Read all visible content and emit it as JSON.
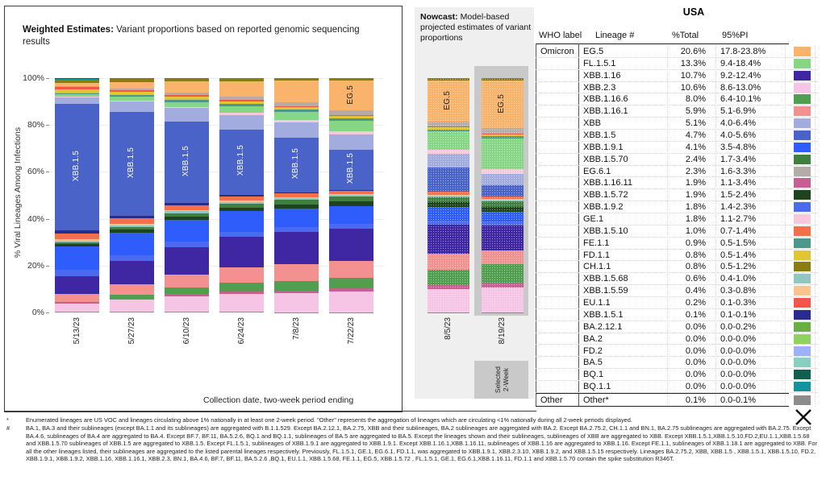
{
  "weighted_panel": {
    "title_bold": "Weighted Estimates:",
    "title_rest": " Variant proportions based on reported genomic sequencing results",
    "y_axis_label": "% Viral Lineages Among Infections",
    "x_axis_label": "Collection date, two-week period ending"
  },
  "nowcast_panel": {
    "title_bold": "Nowcast:",
    "title_rest": " Model-based projected estimates of variant proportions",
    "selected_line1": "Selected",
    "selected_line2": "2-Week"
  },
  "chart_data": {
    "type": "bar",
    "subtype": "stacked-percent",
    "title": "Weighted Estimates: Variant proportions based on reported genomic sequencing results",
    "xlabel": "Collection date, two-week period ending",
    "ylabel": "% Viral Lineages Among Infections",
    "ylim": [
      0,
      100
    ],
    "y_ticks": [
      "0%",
      "20%",
      "40%",
      "60%",
      "80%",
      "100%"
    ],
    "weighted_dates": [
      "5/13/23",
      "5/27/23",
      "6/10/23",
      "6/24/23",
      "7/8/23",
      "7/22/23"
    ],
    "nowcast_dates": [
      "8/5/23",
      "8/19/23"
    ],
    "categories": [
      "5/13/23",
      "5/27/23",
      "6/10/23",
      "6/24/23",
      "7/8/23",
      "7/22/23",
      "8/5/23",
      "8/19/23"
    ],
    "stack_order": "bottom-to-top",
    "series": [
      {
        "name": "Other",
        "color": "#8C8C8C",
        "dotted": false,
        "values": [
          0.3,
          0.3,
          0.2,
          0.2,
          0.1,
          0.1,
          0.1,
          0.1
        ]
      },
      {
        "name": "XBB.2.3",
        "color": "#F6C4E5",
        "dotted": true,
        "values": [
          3.5,
          5.0,
          6.5,
          7.5,
          8.0,
          8.5,
          9.5,
          10.6
        ]
      },
      {
        "name": "XBB.1.16.11",
        "color": "#C75F92",
        "dotted": false,
        "values": [
          0.3,
          0.5,
          0.8,
          1.0,
          1.2,
          1.5,
          1.7,
          1.9
        ]
      },
      {
        "name": "XBB.1.16.6",
        "color": "#509E50",
        "dotted": false,
        "values": [
          0.5,
          1.5,
          2.5,
          3.5,
          4.0,
          4.5,
          6.5,
          8.0
        ]
      },
      {
        "name": "XBB.1.16.1",
        "color": "#F39191",
        "dotted": false,
        "values": [
          3.5,
          4.5,
          5.5,
          6.5,
          7.0,
          7.0,
          6.5,
          5.9
        ]
      },
      {
        "name": "XBB.1.16",
        "color": "#3F27A3",
        "dotted": false,
        "values": [
          7.5,
          9.5,
          11.0,
          12.5,
          13.5,
          13.5,
          12.0,
          10.7
        ]
      },
      {
        "name": "XBB.1.9.2",
        "color": "#4A6AF0",
        "dotted": true,
        "values": [
          2.6,
          2.4,
          2.2,
          2.1,
          2.0,
          1.9,
          1.8,
          1.8
        ]
      },
      {
        "name": "XBB.1.9.1",
        "color": "#2E5DFC",
        "dotted": false,
        "values": [
          10.0,
          9.5,
          9.0,
          8.5,
          8.0,
          7.5,
          5.5,
          4.1
        ]
      },
      {
        "name": "XBB.1.5.72",
        "color": "#1F431F",
        "dotted": false,
        "values": [
          1.0,
          1.2,
          1.4,
          1.5,
          1.6,
          1.8,
          1.9,
          1.9
        ]
      },
      {
        "name": "XBB.1.5.70",
        "color": "#417F41",
        "dotted": false,
        "values": [
          0.8,
          1.0,
          1.3,
          1.6,
          1.9,
          2.1,
          2.3,
          2.4
        ]
      },
      {
        "name": "XBB.1.5.68",
        "color": "#8FC8C0",
        "dotted": true,
        "values": [
          0.8,
          0.8,
          0.7,
          0.7,
          0.7,
          0.6,
          0.6,
          0.6
        ]
      },
      {
        "name": "XBB.1.5.59",
        "color": "#FBC48E",
        "dotted": false,
        "values": [
          0.6,
          0.6,
          0.5,
          0.5,
          0.5,
          0.4,
          0.4,
          0.4
        ]
      },
      {
        "name": "XBB.1.5.10",
        "color": "#F2714C",
        "dotted": true,
        "values": [
          2.4,
          2.2,
          2.0,
          1.8,
          1.5,
          1.3,
          1.1,
          1.0
        ]
      },
      {
        "name": "XBB.1.5.1",
        "color": "#262D8D",
        "dotted": false,
        "values": [
          1.4,
          1.1,
          0.9,
          0.7,
          0.5,
          0.3,
          0.2,
          0.1
        ]
      },
      {
        "name": "XBB.1.5",
        "color": "#4A63C8",
        "dotted": false,
        "values": [
          54.0,
          43.0,
          33.0,
          27.0,
          23.0,
          17.0,
          10.0,
          4.7
        ]
      },
      {
        "name": "XBB",
        "color": "#A3ACDE",
        "dotted": false,
        "values": [
          3.0,
          4.5,
          5.5,
          6.0,
          6.3,
          6.3,
          5.7,
          5.1
        ]
      },
      {
        "name": "GE.1",
        "color": "#F8C8DF",
        "dotted": true,
        "values": [
          0.2,
          0.4,
          0.6,
          0.8,
          1.0,
          1.3,
          1.6,
          1.8
        ]
      },
      {
        "name": "FL.1.5.1",
        "color": "#86D686",
        "dotted": false,
        "values": [
          1.0,
          1.5,
          2.0,
          2.8,
          3.5,
          4.5,
          7.5,
          13.3
        ]
      },
      {
        "name": "FE.1.1",
        "color": "#4F968C",
        "dotted": true,
        "values": [
          0.5,
          0.6,
          0.7,
          0.8,
          0.9,
          1.0,
          0.9,
          0.9
        ]
      },
      {
        "name": "FD.2",
        "color": "#9DB1F8",
        "dotted": true,
        "values": [
          0.2,
          0.1,
          0.1,
          0.1,
          0.0,
          0.0,
          0.0,
          0.0
        ]
      },
      {
        "name": "FD.1.1",
        "color": "#E0C633",
        "dotted": false,
        "values": [
          1.4,
          1.3,
          1.2,
          1.1,
          1.0,
          0.9,
          0.8,
          0.8
        ]
      },
      {
        "name": "EU.1.1",
        "color": "#F25549",
        "dotted": false,
        "values": [
          1.0,
          0.9,
          0.8,
          0.6,
          0.5,
          0.4,
          0.3,
          0.2
        ]
      },
      {
        "name": "EG.6.1",
        "color": "#B5ABA9",
        "dotted": true,
        "values": [
          0.4,
          0.6,
          0.9,
          1.2,
          1.6,
          2.0,
          2.2,
          2.3
        ]
      },
      {
        "name": "EG.5",
        "color": "#F9B36A",
        "dotted": false,
        "values": [
          1.5,
          2.5,
          4.5,
          6.5,
          9.0,
          12.5,
          17.0,
          20.6
        ]
      },
      {
        "name": "CH.1.1",
        "color": "#897C12",
        "dotted": false,
        "values": [
          1.4,
          1.3,
          1.2,
          1.1,
          1.0,
          0.9,
          0.8,
          0.8
        ]
      },
      {
        "name": "BQ.1.1",
        "color": "#12939D",
        "dotted": false,
        "values": [
          0.4,
          0.3,
          0.2,
          0.1,
          0.1,
          0.0,
          0.0,
          0.0
        ]
      },
      {
        "name": "BQ.1",
        "color": "#11604F",
        "dotted": false,
        "values": [
          0.1,
          0.1,
          0.0,
          0.0,
          0.0,
          0.0,
          0.0,
          0.0
        ]
      },
      {
        "name": "BA.5",
        "color": "#87D0C0",
        "dotted": false,
        "values": [
          0,
          0,
          0,
          0,
          0,
          0,
          0,
          0
        ]
      },
      {
        "name": "BA.2.12.1",
        "color": "#68B044",
        "dotted": false,
        "values": [
          0,
          0,
          0,
          0,
          0,
          0,
          0,
          0
        ]
      },
      {
        "name": "BA.2",
        "color": "#8FD35F",
        "dotted": false,
        "values": [
          0,
          0,
          0,
          0,
          0,
          0,
          0,
          0
        ]
      }
    ],
    "bar_labels": [
      {
        "text": "XBB.1.5",
        "lineage": "XBB.1.5",
        "bars": [
          0,
          1,
          2,
          3,
          4,
          5
        ],
        "color": "#ffffff"
      },
      {
        "text": "EG.5",
        "lineage": "EG.5",
        "bars": [
          5,
          6,
          7
        ],
        "color": "#1a1a1a"
      }
    ]
  },
  "table": {
    "title": "USA",
    "headers": [
      "WHO label",
      "Lineage #",
      "%Total",
      "95%PI"
    ],
    "rows": [
      {
        "who": "Omicron",
        "lineage": "EG.5",
        "total": "20.6%",
        "pi": "17.8-23.8%",
        "color": "#F9B36A",
        "dotted": false
      },
      {
        "who": "",
        "lineage": "FL.1.5.1",
        "total": "13.3%",
        "pi": "9.4-18.4%",
        "color": "#86D686",
        "dotted": false
      },
      {
        "who": "",
        "lineage": "XBB.1.16",
        "total": "10.7%",
        "pi": "9.2-12.4%",
        "color": "#3F27A3",
        "dotted": false
      },
      {
        "who": "",
        "lineage": "XBB.2.3",
        "total": "10.6%",
        "pi": "8.6-13.0%",
        "color": "#F6C4E5",
        "dotted": true
      },
      {
        "who": "",
        "lineage": "XBB.1.16.6",
        "total": "8.0%",
        "pi": "6.4-10.1%",
        "color": "#509E50",
        "dotted": false
      },
      {
        "who": "",
        "lineage": "XBB.1.16.1",
        "total": "5.9%",
        "pi": "5.1-6.9%",
        "color": "#F39191",
        "dotted": false
      },
      {
        "who": "",
        "lineage": "XBB",
        "total": "5.1%",
        "pi": "4.0-6.4%",
        "color": "#A3ACDE",
        "dotted": false
      },
      {
        "who": "",
        "lineage": "XBB.1.5",
        "total": "4.7%",
        "pi": "4.0-5.6%",
        "color": "#4A63C8",
        "dotted": false
      },
      {
        "who": "",
        "lineage": "XBB.1.9.1",
        "total": "4.1%",
        "pi": "3.5-4.8%",
        "color": "#2E5DFC",
        "dotted": false
      },
      {
        "who": "",
        "lineage": "XBB.1.5.70",
        "total": "2.4%",
        "pi": "1.7-3.4%",
        "color": "#417F41",
        "dotted": false
      },
      {
        "who": "",
        "lineage": "EG.6.1",
        "total": "2.3%",
        "pi": "1.6-3.3%",
        "color": "#B5ABA9",
        "dotted": true
      },
      {
        "who": "",
        "lineage": "XBB.1.16.11",
        "total": "1.9%",
        "pi": "1.1-3.4%",
        "color": "#C75F92",
        "dotted": false
      },
      {
        "who": "",
        "lineage": "XBB.1.5.72",
        "total": "1.9%",
        "pi": "1.5-2.4%",
        "color": "#1F431F",
        "dotted": false
      },
      {
        "who": "",
        "lineage": "XBB.1.9.2",
        "total": "1.8%",
        "pi": "1.4-2.3%",
        "color": "#4A6AF0",
        "dotted": true
      },
      {
        "who": "",
        "lineage": "GE.1",
        "total": "1.8%",
        "pi": "1.1-2.7%",
        "color": "#F8C8DF",
        "dotted": true
      },
      {
        "who": "",
        "lineage": "XBB.1.5.10",
        "total": "1.0%",
        "pi": "0.7-1.4%",
        "color": "#F2714C",
        "dotted": true
      },
      {
        "who": "",
        "lineage": "FE.1.1",
        "total": "0.9%",
        "pi": "0.5-1.5%",
        "color": "#4F968C",
        "dotted": true
      },
      {
        "who": "",
        "lineage": "FD.1.1",
        "total": "0.8%",
        "pi": "0.5-1.4%",
        "color": "#E0C633",
        "dotted": false
      },
      {
        "who": "",
        "lineage": "CH.1.1",
        "total": "0.8%",
        "pi": "0.5-1.2%",
        "color": "#897C12",
        "dotted": false
      },
      {
        "who": "",
        "lineage": "XBB.1.5.68",
        "total": "0.6%",
        "pi": "0.4-1.0%",
        "color": "#8FC8C0",
        "dotted": true
      },
      {
        "who": "",
        "lineage": "XBB.1.5.59",
        "total": "0.4%",
        "pi": "0.3-0.8%",
        "color": "#FBC48E",
        "dotted": false
      },
      {
        "who": "",
        "lineage": "EU.1.1",
        "total": "0.2%",
        "pi": "0.1-0.3%",
        "color": "#F25549",
        "dotted": false
      },
      {
        "who": "",
        "lineage": "XBB.1.5.1",
        "total": "0.1%",
        "pi": "0.1-0.1%",
        "color": "#262D8D",
        "dotted": false
      },
      {
        "who": "",
        "lineage": "BA.2.12.1",
        "total": "0.0%",
        "pi": "0.0-0.2%",
        "color": "#68B044",
        "dotted": false
      },
      {
        "who": "",
        "lineage": "BA.2",
        "total": "0.0%",
        "pi": "0.0-0.0%",
        "color": "#8FD35F",
        "dotted": false
      },
      {
        "who": "",
        "lineage": "FD.2",
        "total": "0.0%",
        "pi": "0.0-0.0%",
        "color": "#9DB1F8",
        "dotted": true
      },
      {
        "who": "",
        "lineage": "BA.5",
        "total": "0.0%",
        "pi": "0.0-0.0%",
        "color": "#87D0C0",
        "dotted": false
      },
      {
        "who": "",
        "lineage": "BQ.1",
        "total": "0.0%",
        "pi": "0.0-0.0%",
        "color": "#11604F",
        "dotted": false
      },
      {
        "who": "",
        "lineage": "BQ.1.1",
        "total": "0.0%",
        "pi": "0.0-0.0%",
        "color": "#12939D",
        "dotted": false
      },
      {
        "who": "Other",
        "lineage": "Other*",
        "total": "0.1%",
        "pi": "0.0-0.1%",
        "color": "#8C8C8C",
        "dotted": false,
        "is_other": true
      }
    ]
  },
  "footnotes": [
    {
      "marker": "*",
      "text": "Enumerated lineages are US VOC and lineages circulating above 1% nationally in at least one 2-week period. \"Other\" represents the aggregation of lineages which are circulating <1% nationally during all 2-week periods displayed."
    },
    {
      "marker": "#",
      "text": "BA.1, BA.3 and their sublineages (except BA.1.1 and its sublineages) are aggregated with B.1.1.529. Except BA.2.12.1, BA.2.75, XBB and their sublineages, BA.2 sublineages are aggregated with BA.2. Except BA.2.75.2, CH.1.1 and BN.1, BA.2.75 sublineages are aggregated with BA.2.75. Except BA.4.6, sublineages of BA.4 are aggregated to BA.4. Except BF.7, BF.11, BA.5.2.6, BQ.1 and BQ.1.1, sublineages of BA.5 are aggregated to BA.5. Except the lineages shown and their sublineages, sublineages of XBB are aggregated to XBB. Except XBB.1.5.1,XBB.1.5.10,FD.2,EU.1.1,XBB.1.5.68 and XBB.1.5.70 sublineages of XBB.1.5 are aggregated to XBB.1.5. Except FL.1.5.1, sublineages of XBB.1.9.1 are aggregated to XBB.1.9.1. Except XBB.1.16.1,XBB.1.16.11, sublineages of XBB.1.16 are aggregated to XBB.1.16. Except FE.1.1, sublineages of XBB.1.18.1 are aggregated to XBB. For all the other lineages listed, their sublineages are aggregated to the listed parental lineages respectively. Previously, FL.1.5.1, GE.1, EG.6.1, FD.1.1, was aggregated to XBB.1.9.1, XBB.2.3.10, XBB.1.9.2, and XBB.1.5.15 respectively. Lineages BA.2.75.2, XBB, XBB.1.5 , XBB.1.5.1, XBB.1.5.10, FD.2, XBB.1.9.1, XBB.1.9.2, XBB.1.16, XBB.1.16.1, XBB.2.3, BN.1, BA.4.6, BF.7, BF.11, BA.5.2.6 ,BQ.1, EU.1.1, XBB.1.5.68, FE.1.1, EG.5, XBB.1.5.72 , FL.1.5.1, GE.1, EG.6.1,XBB.1.16.11, FD.1.1 and XBB.1.5.70 contain the spike substitution R346T."
    }
  ]
}
